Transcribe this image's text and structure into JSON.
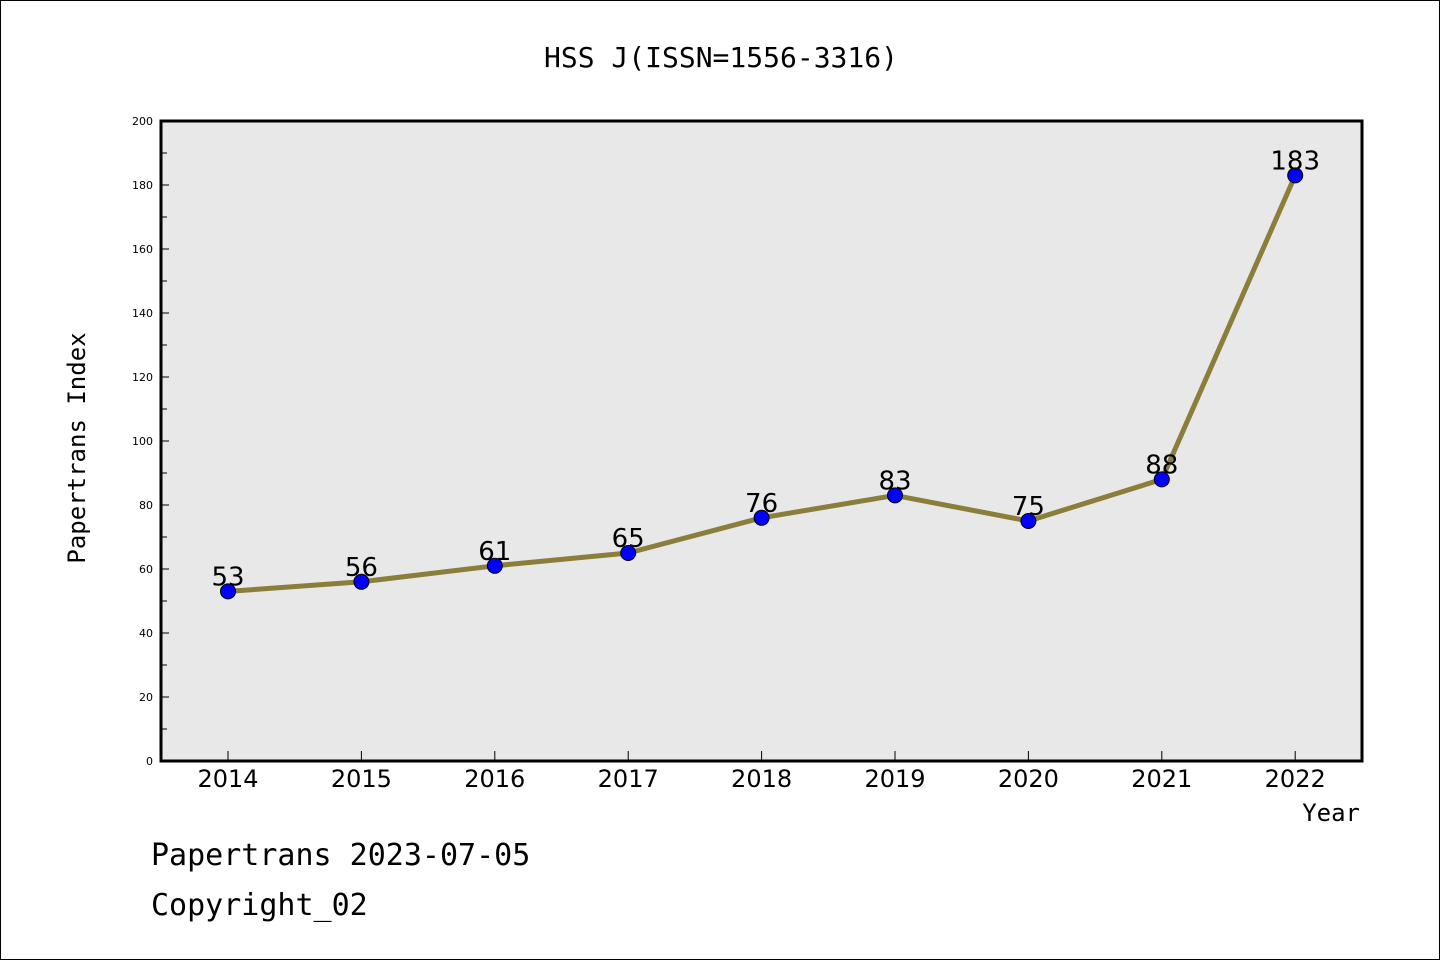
{
  "chart_data": {
    "type": "line",
    "title": "HSS J(ISSN=1556-3316)",
    "xlabel": "Year",
    "ylabel": "Papertrans Index",
    "categories": [
      "2014",
      "2015",
      "2016",
      "2017",
      "2018",
      "2019",
      "2020",
      "2021",
      "2022"
    ],
    "series": [
      {
        "values": [
          53,
          56,
          61,
          65,
          76,
          83,
          75,
          88,
          183
        ]
      }
    ],
    "data_labels": [
      "53",
      "56",
      "61",
      "65",
      "76",
      "83",
      "75",
      "88",
      "183"
    ],
    "ylim": [
      0,
      200
    ],
    "yticks": [
      "0",
      "20",
      "40",
      "60",
      "80",
      "100",
      "120",
      "140",
      "160",
      "180",
      "200"
    ],
    "grid": false,
    "line_color": "#8b7d3a",
    "marker_color": "#0000ff",
    "plot_background": "#e8e8e8"
  },
  "footer": {
    "line1": "Papertrans 2023-07-05",
    "line2": "Copyright_02"
  }
}
